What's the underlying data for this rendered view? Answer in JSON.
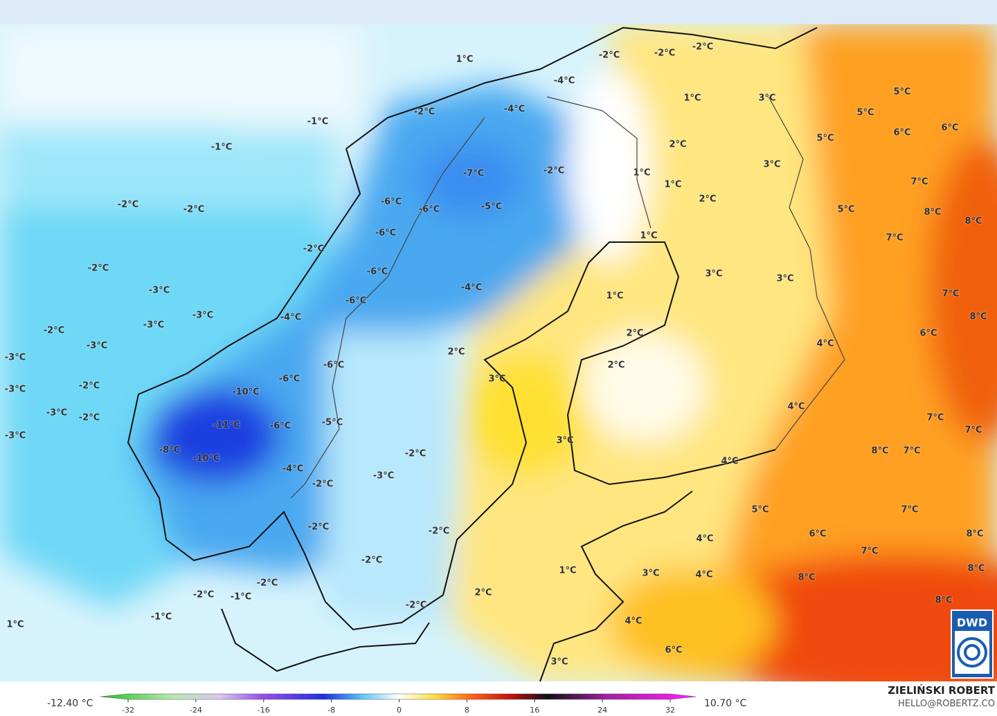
{
  "map": {
    "labels": [
      "1°C",
      "-2°C",
      "-2°C",
      "-2°C",
      "-4°C",
      "1°C",
      "3°C",
      "5°C",
      "-2°C",
      "-4°C",
      "5°C",
      "6°C",
      "6°C",
      "5°C",
      "-1°C",
      "-1°C",
      "2°C",
      "-7°C",
      "-2°C",
      "1°C",
      "3°C",
      "1°C",
      "7°C",
      "2°C",
      "-2°C",
      "-2°C",
      "-6°C",
      "-6°C",
      "-5°C",
      "5°C",
      "8°C",
      "8°C",
      "-6°C",
      "1°C",
      "-2°C",
      "7°C",
      "-2°C",
      "-6°C",
      "3°C",
      "3°C",
      "-3°C",
      "-4°C",
      "1°C",
      "7°C",
      "-6°C",
      "-3°C",
      "-4°C",
      "8°C",
      "-3°C",
      "-2°C",
      "2°C",
      "6°C",
      "-3°C",
      "4°C",
      "2°C",
      "-3°C",
      "-6°C",
      "2°C",
      "3°C",
      "-6°C",
      "-3°C",
      "-2°C",
      "-10°C",
      "4°C",
      "-3°C",
      "-2°C",
      "7°C",
      "-11°C",
      "-6°C",
      "-5°C",
      "3°C",
      "7°C",
      "-3°C",
      "-8°C",
      "-2°C",
      "8°C",
      "7°C",
      "-10°C",
      "4°C",
      "-4°C",
      "-3°C",
      "-2°C",
      "5°C",
      "7°C",
      "-2°C",
      "-2°C",
      "4°C",
      "6°C",
      "8°C",
      "7°C",
      "-2°C",
      "1°C",
      "3°C",
      "4°C",
      "8°C",
      "8°C",
      "-2°C",
      "2°C",
      "-2°C",
      "-1°C",
      "8°C",
      "-2°C",
      "-1°C",
      "1°C",
      "4°C",
      "6°C",
      "3°C"
    ]
  },
  "legend": {
    "min_label": "-12.40 °C",
    "max_label": "10.70 °C",
    "ticks": [
      -32,
      -24,
      -16,
      -8,
      0,
      8,
      16,
      24,
      32
    ]
  },
  "credit": {
    "name": "ZIELIŃSKI ROBERT",
    "email": "HELLO@ROBERTZ.CO"
  },
  "logo": "DWD"
}
